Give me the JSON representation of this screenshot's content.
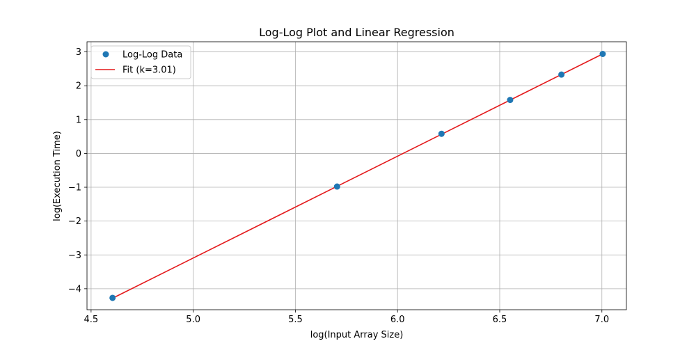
{
  "chart_data": {
    "type": "scatter",
    "title": "Log-Log Plot and Linear Regression",
    "xlabel": "log(Input Array Size)",
    "ylabel": "log(Execution Time)",
    "xlim": [
      4.48,
      7.12
    ],
    "ylim": [
      -4.62,
      3.3
    ],
    "x_ticks": [
      4.5,
      5.0,
      5.5,
      6.0,
      6.5,
      7.0
    ],
    "x_tick_labels": [
      "4.5",
      "5.0",
      "5.5",
      "6.0",
      "6.5",
      "7.0"
    ],
    "y_ticks": [
      -4,
      -3,
      -2,
      -1,
      0,
      1,
      2,
      3
    ],
    "y_tick_labels": [
      "−4",
      "−3",
      "−2",
      "−1",
      "0",
      "1",
      "2",
      "3"
    ],
    "grid": true,
    "legend_position": "top-left",
    "series": [
      {
        "name": "Log-Log Data",
        "kind": "scatter",
        "color": "#1f77b4",
        "x": [
          4.605,
          5.704,
          6.215,
          6.551,
          6.802,
          7.004
        ],
        "y": [
          -4.27,
          -0.98,
          0.58,
          1.58,
          2.33,
          2.94
        ]
      },
      {
        "name": "Fit (k=3.01)",
        "kind": "line",
        "color": "#e41a1c",
        "x": [
          4.605,
          7.004
        ],
        "y": [
          -4.28,
          2.94
        ]
      }
    ]
  }
}
